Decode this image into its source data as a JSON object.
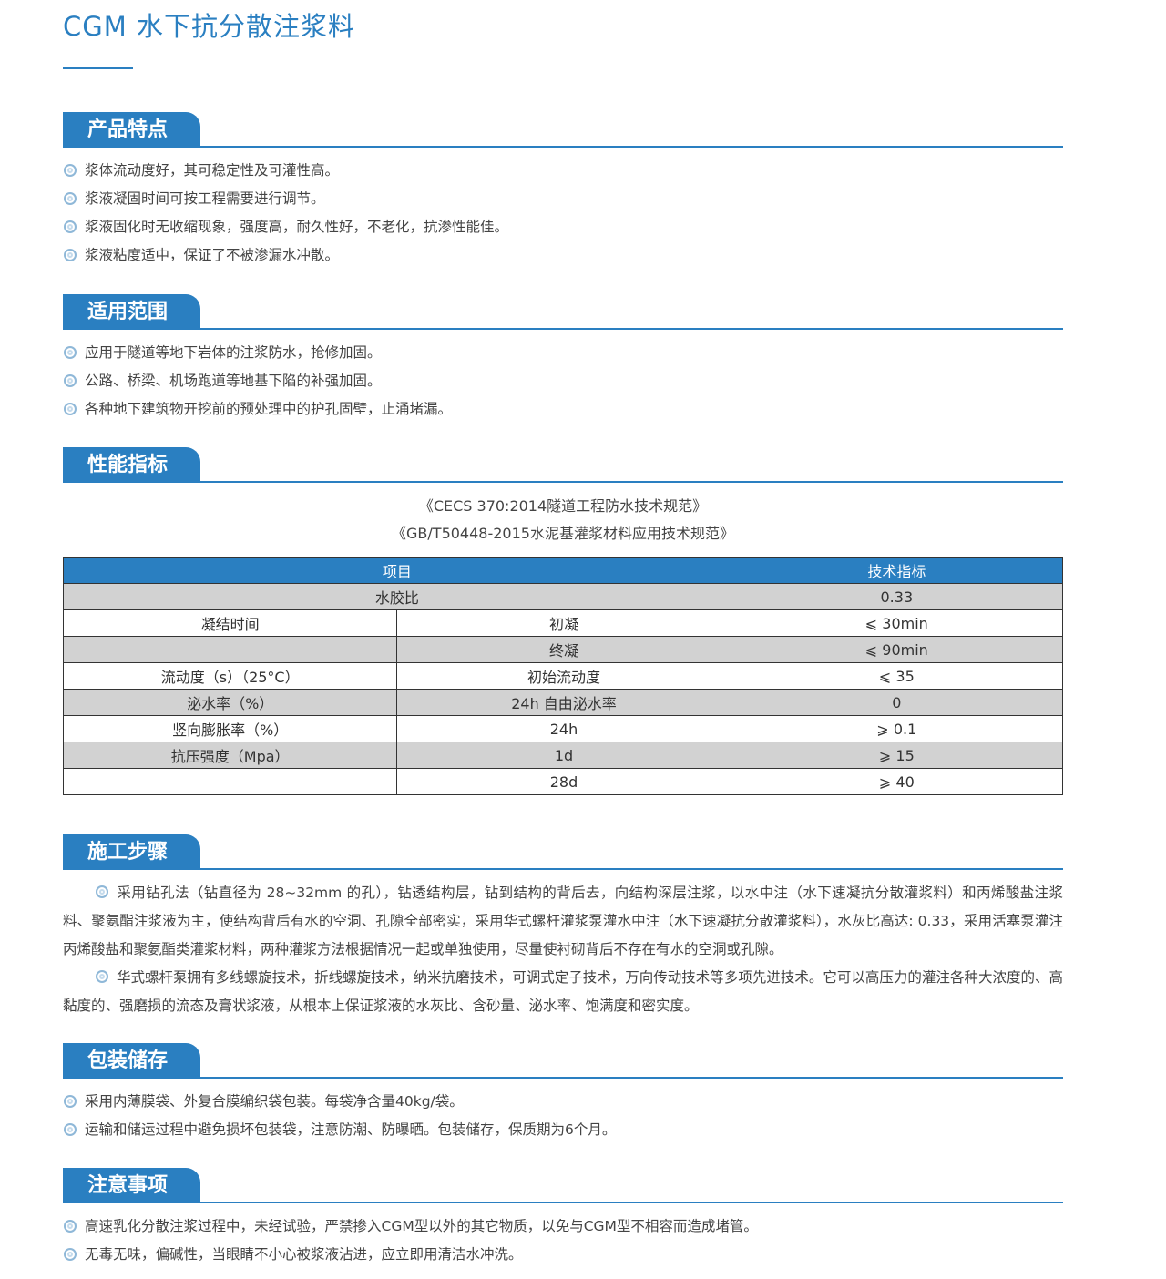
{
  "title": "CGM 水下抗分散注浆料",
  "colors": {
    "accent": "#2a7fc1",
    "row_gray": "#d2d2d2"
  },
  "sections": {
    "features": {
      "heading": "产品特点",
      "items": [
        "浆体流动度好，其可稳定性及可灌性高。",
        "浆液凝固时间可按工程需要进行调节。",
        "浆液固化时无收缩现象，强度高，耐久性好，不老化，抗渗性能佳。",
        "浆液粘度适中，保证了不被渗漏水冲散。"
      ]
    },
    "scope": {
      "heading": "适用范围",
      "items": [
        "应用于隧道等地下岩体的注浆防水，抢修加固。",
        "公路、桥梁、机场跑道等地基下陷的补强加固。",
        "各种地下建筑物开挖前的预处理中的护孔固壁，止涌堵漏。"
      ]
    },
    "performance": {
      "heading": "性能指标",
      "standards": [
        "《CECS 370:2014隧道工程防水技术规范》",
        "《GB/T50448-2015水泥基灌浆材料应用技术规范》"
      ],
      "table": {
        "headers": [
          "项目",
          "技术指标"
        ],
        "rows": [
          [
            "水胶比",
            "",
            "0.33"
          ],
          [
            "凝结时间",
            "初凝",
            "⩽ 30min"
          ],
          [
            "",
            "终凝",
            "⩽ 90min"
          ],
          [
            "流动度（s）（25°C）",
            "初始流动度",
            "⩽ 35"
          ],
          [
            "泌水率（%）",
            "24h 自由泌水率",
            "0"
          ],
          [
            "竖向膨胀率（%）",
            "24h",
            "⩾ 0.1"
          ],
          [
            "抗压强度（Mpa）",
            "1d",
            "⩾ 15"
          ],
          [
            "",
            "28d",
            "⩾ 40"
          ]
        ]
      }
    },
    "construction": {
      "heading": "施工步骤",
      "paragraphs": [
        "采用钻孔法（钻直径为 28~32mm 的孔），钻透结构层，钻到结构的背后去，向结构深层注浆，以水中注（水下速凝抗分散灌浆料）和丙烯酸盐注浆料、聚氨酯注浆液为主，使结构背后有水的空洞、孔隙全部密实，采用华式螺杆灌浆泵灌水中注（水下速凝抗分散灌浆料），水灰比高达: 0.33，采用活塞泵灌注丙烯酸盐和聚氨酯类灌浆材料，两种灌浆方法根据情况一起或单独使用，尽量使衬砌背后不存在有水的空洞或孔隙。",
        "华式螺杆泵拥有多线螺旋技术，折线螺旋技术，纳米抗磨技术，可调式定子技术，万向传动技术等多项先进技术。它可以高压力的灌注各种大浓度的、高黏度的、强磨损的流态及膏状浆液，从根本上保证浆液的水灰比、含砂量、泌水率、饱满度和密实度。"
      ]
    },
    "packaging": {
      "heading": "包装储存",
      "items": [
        "采用内薄膜袋、外复合膜编织袋包装。每袋净含量40kg/袋。",
        "运输和储运过程中避免损坏包装袋，注意防潮、防曝晒。包装储存，保质期为6个月。"
      ]
    },
    "notes": {
      "heading": "注意事项",
      "items": [
        "高速乳化分散注浆过程中，未经试验，严禁掺入CGM型以外的其它物质，以免与CGM型不相容而造成堵管。",
        "无毒无味，偏碱性，当眼睛不小心被浆液沾进，应立即用清洁水冲洗。"
      ]
    }
  }
}
